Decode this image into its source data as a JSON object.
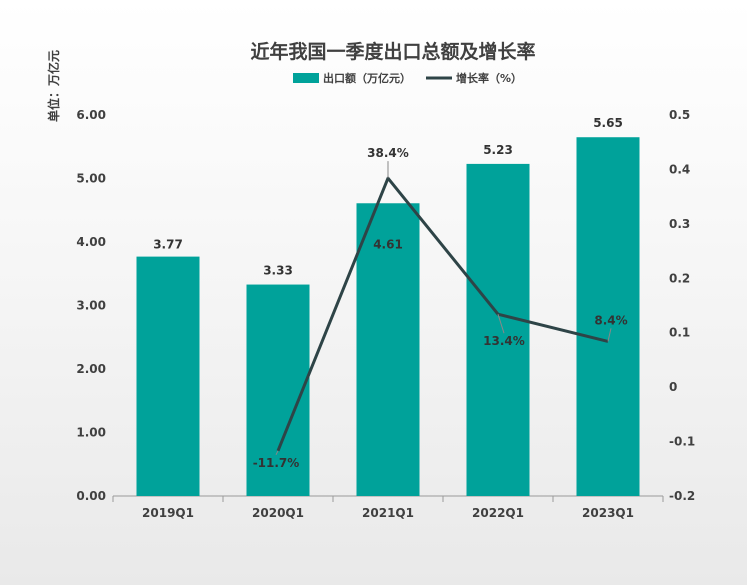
{
  "chart_data": {
    "type": "bar",
    "title": "近年我国一季度出口总额及增长率",
    "ylabel": "单位：万亿元",
    "categories": [
      "2019Q1",
      "2020Q1",
      "2021Q1",
      "2022Q1",
      "2023Q1"
    ],
    "series": [
      {
        "name": "出口额（万亿元）",
        "type": "bar",
        "axis": "left",
        "color": "#00A29A",
        "values": [
          3.77,
          3.33,
          4.61,
          5.23,
          5.65
        ],
        "labels": [
          "3.77",
          "3.33",
          "4.61",
          "5.23",
          "5.65"
        ]
      },
      {
        "name": "增长率（%）",
        "type": "line",
        "axis": "right",
        "color": "#2E4447",
        "values": [
          null,
          -0.117,
          0.384,
          0.134,
          0.084
        ],
        "labels": [
          "",
          "-11.7%",
          "38.4%",
          "13.4%",
          "8.4%"
        ]
      }
    ],
    "y_left": {
      "range": [
        0,
        6
      ],
      "ticks": [
        "0.00",
        "1.00",
        "2.00",
        "3.00",
        "4.00",
        "5.00",
        "6.00"
      ]
    },
    "y_right": {
      "range": [
        -0.2,
        0.5
      ],
      "ticks": [
        "-0.2",
        "-0.1",
        "0",
        "0.1",
        "0.2",
        "0.3",
        "0.4",
        "0.5"
      ]
    },
    "grid": false,
    "legend_position": "top-center"
  }
}
